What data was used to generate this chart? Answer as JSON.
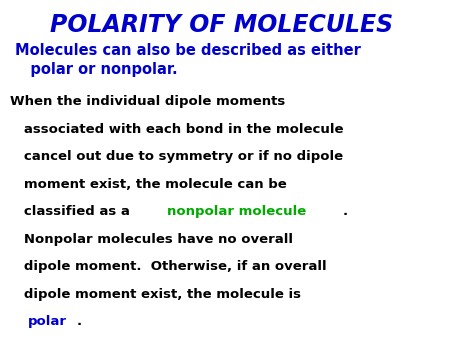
{
  "title": "POLARITY OF MOLECULES",
  "title_color": "#0000CC",
  "subtitle1": "Molecules can also be described as either",
  "subtitle2": "   polar or nonpolar.",
  "subtitle_color": "#0000CC",
  "body_color": "#000000",
  "green_color": "#00AA00",
  "blue_color": "#0000CC",
  "background_color": "#FFFFFF",
  "title_fontsize": 17,
  "subtitle_fontsize": 10.5,
  "body_fontsize": 9.5
}
